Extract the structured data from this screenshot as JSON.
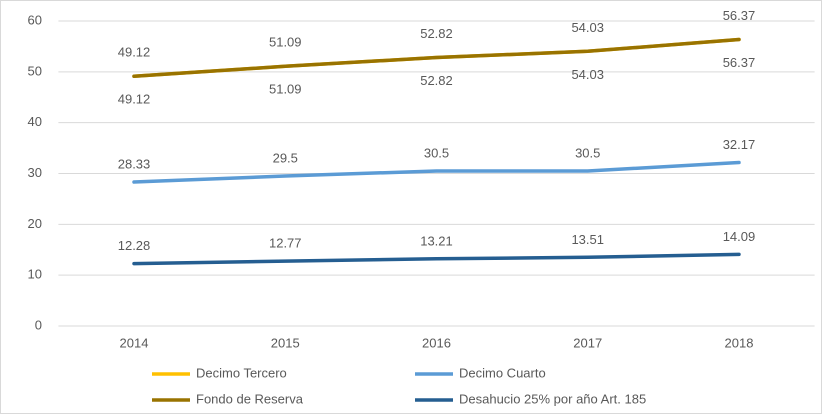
{
  "chart_data": {
    "type": "line",
    "categories": [
      "2014",
      "2015",
      "2016",
      "2017",
      "2018"
    ],
    "series": [
      {
        "name": "Decimo Tercero",
        "color": "#ffc000",
        "values": [
          49.12,
          51.09,
          52.82,
          54.03,
          56.37
        ]
      },
      {
        "name": "Decimo Cuarto",
        "color": "#5b9bd5",
        "values": [
          28.33,
          29.5,
          30.5,
          30.5,
          32.17
        ]
      },
      {
        "name": "Fondo de Reserva",
        "color": "#997300",
        "values": [
          49.12,
          51.09,
          52.82,
          54.03,
          56.37
        ]
      },
      {
        "name": "Desahucio 25% por año Art. 185",
        "color": "#255e91",
        "values": [
          12.28,
          12.77,
          13.21,
          13.51,
          14.09
        ]
      }
    ],
    "ylim": [
      0,
      60
    ],
    "yticks": [
      0,
      10,
      20,
      30,
      40,
      50,
      60
    ],
    "grid": true,
    "legend": "bottom"
  }
}
